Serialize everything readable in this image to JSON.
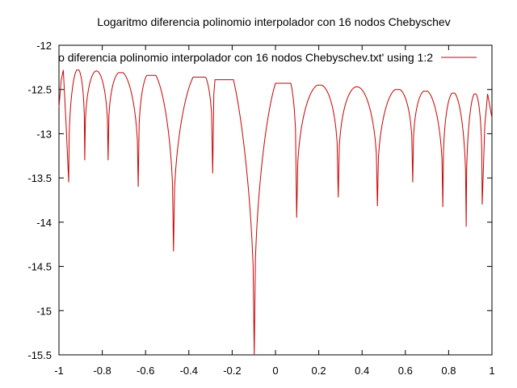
{
  "chart_data": {
    "type": "line",
    "title": "Logaritmo diferencia polinomio interpolador con 16 nodos Chebyschev",
    "xlabel": "",
    "ylabel": "",
    "xlim": [
      -1,
      1
    ],
    "ylim": [
      -15.5,
      -12
    ],
    "xticks": [
      -1,
      -0.8,
      -0.6,
      -0.4,
      -0.2,
      0,
      0.2,
      0.4,
      0.6,
      0.8,
      1
    ],
    "xtick_labels": [
      "-1",
      "-0.8",
      "-0.6",
      "-0.4",
      "-0.2",
      "0",
      "0.2",
      "0.4",
      "0.6",
      "0.8",
      "1"
    ],
    "yticks": [
      -12,
      -12.5,
      -13,
      -13.5,
      -14,
      -14.5,
      -15,
      -15.5
    ],
    "ytick_labels": [
      "-12",
      "-12.5",
      "-13",
      "-13.5",
      "-14",
      "-14.5",
      "-15",
      "-15.5"
    ],
    "grid": false,
    "legend_position": "top-right",
    "series": [
      {
        "name": "o diferencia polinomio interpolador con 16 nodos Chebyschev.txt' using 1:2",
        "color": "#cc0000",
        "dips": [
          {
            "x": -0.955,
            "y": -13.55
          },
          {
            "x": -0.881,
            "y": -13.3
          },
          {
            "x": -0.773,
            "y": -13.3
          },
          {
            "x": -0.634,
            "y": -13.6
          },
          {
            "x": -0.471,
            "y": -14.33
          },
          {
            "x": -0.29,
            "y": -13.45
          },
          {
            "x": -0.098,
            "y": -15.5
          },
          {
            "x": 0.098,
            "y": -13.95
          },
          {
            "x": 0.29,
            "y": -13.72
          },
          {
            "x": 0.471,
            "y": -13.82
          },
          {
            "x": 0.634,
            "y": -13.55
          },
          {
            "x": 0.773,
            "y": -13.83
          },
          {
            "x": 0.881,
            "y": -14.05
          },
          {
            "x": 0.955,
            "y": -13.8
          }
        ],
        "peaks": [
          {
            "x": -1.0,
            "y": -12.7
          },
          {
            "x": -0.98,
            "y": -12.28
          },
          {
            "x": -0.918,
            "y": -12.28
          },
          {
            "x": -0.827,
            "y": -12.29
          },
          {
            "x": -0.703,
            "y": -12.31
          },
          {
            "x": -0.552,
            "y": -12.34
          },
          {
            "x": -0.38,
            "y": -12.36
          },
          {
            "x": -0.194,
            "y": -12.39
          },
          {
            "x": 0.0,
            "y": -12.43
          },
          {
            "x": 0.194,
            "y": -12.45
          },
          {
            "x": 0.38,
            "y": -12.47
          },
          {
            "x": 0.552,
            "y": -12.5
          },
          {
            "x": 0.703,
            "y": -12.52
          },
          {
            "x": 0.827,
            "y": -12.54
          },
          {
            "x": 0.918,
            "y": -12.55
          },
          {
            "x": 0.98,
            "y": -12.55
          },
          {
            "x": 1.0,
            "y": -12.82
          }
        ]
      }
    ]
  }
}
